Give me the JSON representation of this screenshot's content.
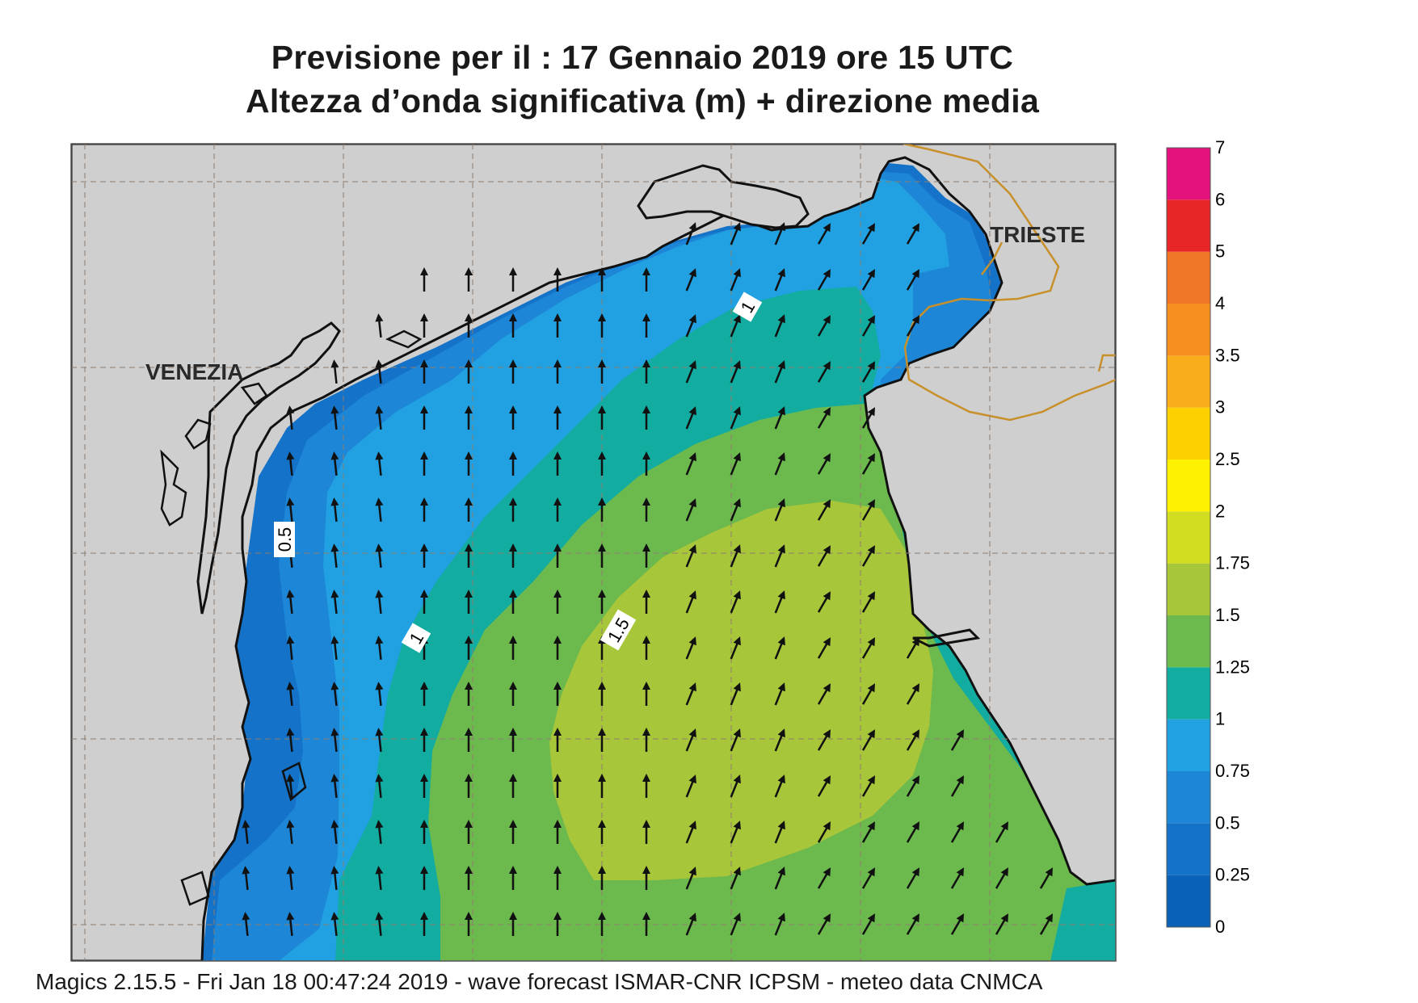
{
  "title_line1": "Previsione per il  :  17  Gennaio  2019   ore 15 UTC",
  "title_line2": "Altezza d’onda significativa (m) + direzione media",
  "footer": "Magics 2.15.5 - Fri Jan 18 00:47:24 2019 - wave forecast  ISMAR-CNR  ICPSM - meteo data   CNMCA",
  "cities": [
    {
      "name": "VENEZIA"
    },
    {
      "name": "TRIESTE"
    }
  ],
  "contour_labels": [
    "0.5",
    "1",
    "1",
    "1.5"
  ],
  "colorbar": {
    "levels": [
      {
        "label": "0",
        "color": "#0a62b8"
      },
      {
        "label": "0.25",
        "color": "#1472c8"
      },
      {
        "label": "0.5",
        "color": "#1d86d6"
      },
      {
        "label": "0.75",
        "color": "#21a0e2"
      },
      {
        "label": "1",
        "color": "#12aca0"
      },
      {
        "label": "1.25",
        "color": "#6cb94e"
      },
      {
        "label": "1.5",
        "color": "#a8c63a"
      },
      {
        "label": "1.75",
        "color": "#d2dc20"
      },
      {
        "label": "2",
        "color": "#fff200"
      },
      {
        "label": "2.5",
        "color": "#fdd000"
      },
      {
        "label": "3",
        "color": "#f9ad1a"
      },
      {
        "label": "3.5",
        "color": "#f58f20"
      },
      {
        "label": "4",
        "color": "#f07525"
      },
      {
        "label": "5",
        "color": "#e8262a"
      },
      {
        "label": "6",
        "color": "#e5127e"
      },
      {
        "label": "7",
        "color": ""
      }
    ]
  },
  "colors": {
    "land": "#cfcfcf",
    "coast": "#111111",
    "border": "#c8902a",
    "grid": "#8e7e6e"
  }
}
